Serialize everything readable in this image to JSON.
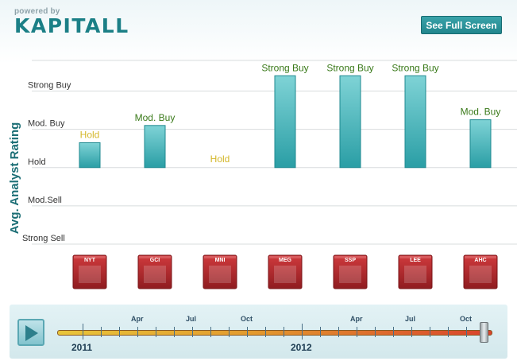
{
  "branding": {
    "powered_by": "powered by",
    "logo_text": "KAPITALL"
  },
  "toolbar": {
    "fullscreen_label": "See Full Screen"
  },
  "chart_data": {
    "type": "bar",
    "ylabel": "Avg. Analyst Rating",
    "rating_levels": [
      "Strong Sell",
      "Mod.Sell",
      "Hold",
      "Mod. Buy",
      "Strong Buy"
    ],
    "rating_scale": [
      -2,
      -1,
      0,
      1,
      2
    ],
    "ylim": [
      -2,
      2.8
    ],
    "grid": true,
    "categories": [
      "NYT",
      "GCI",
      "MNI",
      "MEG",
      "SSP",
      "LEE",
      "AHC"
    ],
    "values": [
      0.65,
      1.1,
      0,
      2.4,
      2.4,
      2.4,
      1.25
    ],
    "value_labels": [
      "Hold",
      "Mod. Buy",
      "Hold",
      "Strong Buy",
      "Strong Buy",
      "Strong Buy",
      "Mod. Buy"
    ],
    "colors": {
      "bar_top": "#7fd3d6",
      "bar_bottom": "#2a9ea5",
      "bar_border": "#1f8a90",
      "hold_label": "#d4b72a",
      "buy_label": "#3a7a1a",
      "logo_tile": "#b5262a"
    }
  },
  "timeline": {
    "months": [
      "Apr",
      "Jul",
      "Oct",
      "Apr",
      "Jul",
      "Oct"
    ],
    "years": [
      "2011",
      "2012"
    ]
  }
}
